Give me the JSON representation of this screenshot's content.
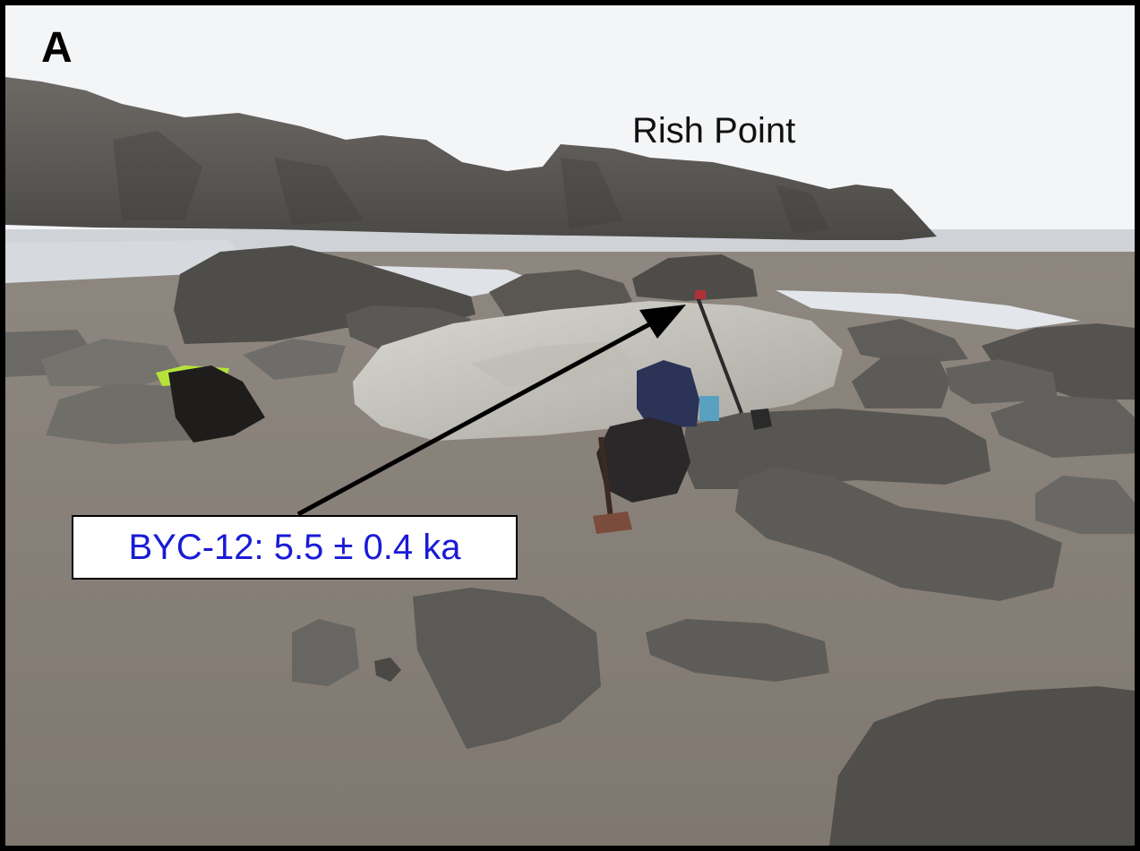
{
  "panel_label": "A",
  "place_label": "Rish Point",
  "sample_label": "BYC-12: 5.5 ± 0.4 ka",
  "colors": {
    "sample_text": "#1a1ad6",
    "frame": "#000000",
    "sky": "#f4f5f7",
    "sand": "#8a8279",
    "water": "#d6dadf",
    "cliff": "#5e5c58"
  }
}
